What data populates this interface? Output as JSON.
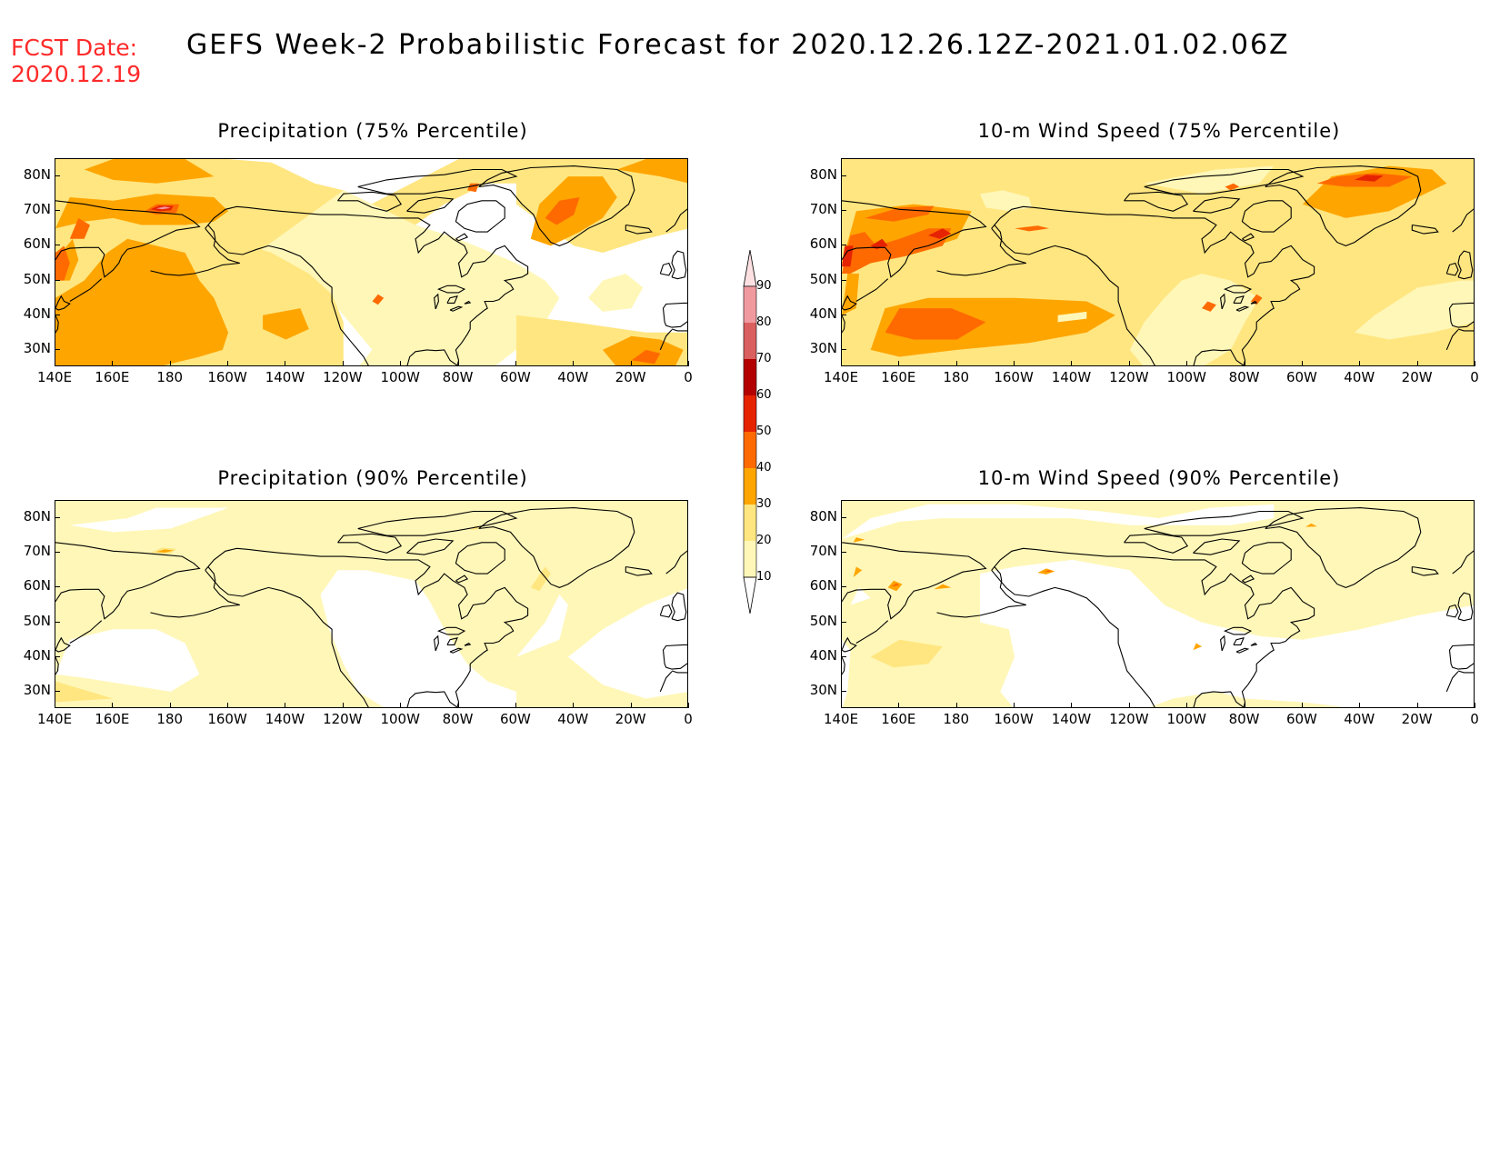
{
  "header": {
    "fcst_label": "FCST Date:",
    "fcst_date": "2020.12.19",
    "title": "GEFS Week-2 Probabilistic Forecast for 2020.12.26.12Z-2021.01.02.06Z"
  },
  "panels": [
    {
      "id": "precip-75",
      "title": "Precipitation (75% Percentile)"
    },
    {
      "id": "wind-75",
      "title": "10-m Wind Speed (75% Percentile)"
    },
    {
      "id": "precip-90",
      "title": "Precipitation (90% Percentile)"
    },
    {
      "id": "wind-90",
      "title": "10-m Wind Speed (90% Percentile)"
    }
  ],
  "axes": {
    "lat_labels": [
      "80N",
      "70N",
      "60N",
      "50N",
      "40N",
      "30N"
    ],
    "lon_labels": [
      "140E",
      "160E",
      "180",
      "160W",
      "140W",
      "120W",
      "100W",
      "80W",
      "60W",
      "40W",
      "20W",
      "0"
    ],
    "lat_range": [
      25,
      85
    ],
    "lon_range": [
      140,
      360
    ]
  },
  "colorbar": {
    "levels": [
      "10",
      "20",
      "30",
      "40",
      "50",
      "60",
      "70",
      "80",
      "90"
    ],
    "colors": [
      "#fff7b8",
      "#ffe680",
      "#ffa500",
      "#ff6a00",
      "#e62300",
      "#b30000",
      "#d9605f",
      "#f09aa0",
      "#fde0e2"
    ]
  }
}
